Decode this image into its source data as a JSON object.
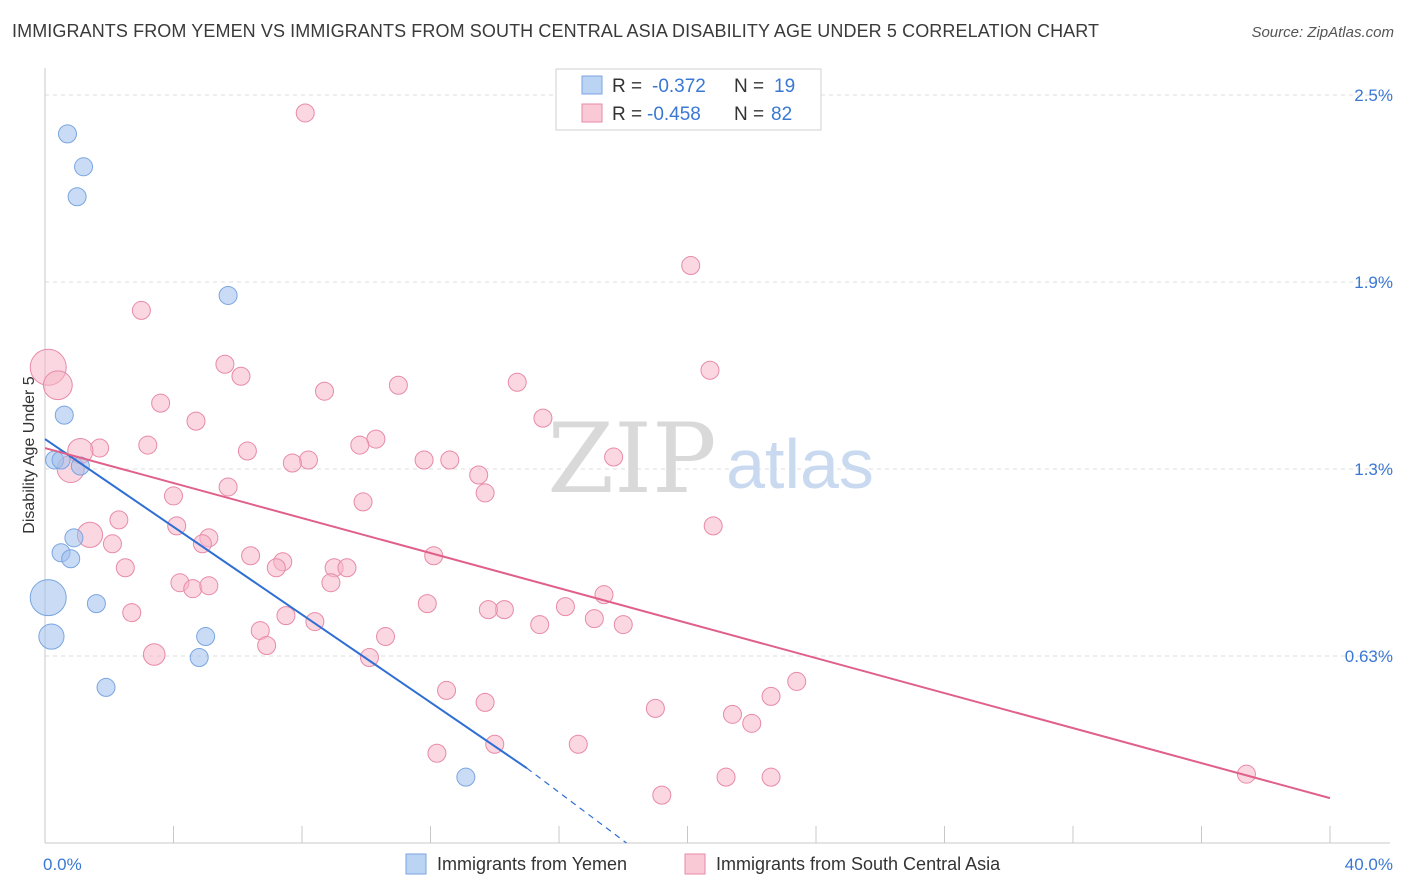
{
  "title": "IMMIGRANTS FROM YEMEN VS IMMIGRANTS FROM SOUTH CENTRAL ASIA DISABILITY AGE UNDER 5 CORRELATION CHART",
  "source": "Source: ZipAtlas.com",
  "chart_data": {
    "type": "scatter",
    "title": "IMMIGRANTS FROM YEMEN VS IMMIGRANTS FROM SOUTH CENTRAL ASIA DISABILITY AGE UNDER 5 CORRELATION CHART",
    "xlabel": "",
    "ylabel": "Disability Age Under 5",
    "xlim": [
      0,
      40
    ],
    "ylim": [
      0,
      2.5
    ],
    "x_tick_labels": [
      "0.0%",
      "40.0%"
    ],
    "y_tick_labels": [
      "2.5%",
      "1.9%",
      "1.3%",
      "0.63%"
    ],
    "y_ticks": [
      2.5,
      1.875,
      1.25,
      0.625
    ],
    "grid": true,
    "watermark": {
      "big": "ZIP",
      "small": "atlas"
    },
    "legend": {
      "position": "top-center",
      "rows": [
        {
          "r_label": "R =",
          "r_value": "-0.372",
          "n_label": "N =",
          "n_value": "19"
        },
        {
          "r_label": "R =",
          "r_value": "-0.458",
          "n_label": "N =",
          "n_value": "82"
        }
      ]
    },
    "series": [
      {
        "name": "Immigrants from Yemen",
        "color": "#9ec0ec",
        "line_color": "#2f6fd4",
        "trend": {
          "x0": 0.0,
          "y0": 1.35,
          "x1": 15.0,
          "y1": 0.25,
          "dash_to_x": 18.1,
          "dash_to_y": 0.0
        },
        "points": [
          {
            "x": 0.7,
            "y": 2.37,
            "s": 1
          },
          {
            "x": 1.2,
            "y": 2.26,
            "s": 1
          },
          {
            "x": 1.0,
            "y": 2.16,
            "s": 1
          },
          {
            "x": 5.7,
            "y": 1.83,
            "s": 1
          },
          {
            "x": 0.6,
            "y": 1.43,
            "s": 1
          },
          {
            "x": 0.3,
            "y": 1.28,
            "s": 1
          },
          {
            "x": 0.5,
            "y": 1.28,
            "s": 1
          },
          {
            "x": 1.1,
            "y": 1.26,
            "s": 1
          },
          {
            "x": 0.9,
            "y": 1.02,
            "s": 1
          },
          {
            "x": 0.5,
            "y": 0.97,
            "s": 1
          },
          {
            "x": 0.8,
            "y": 0.95,
            "s": 1
          },
          {
            "x": 0.1,
            "y": 0.82,
            "s": 2
          },
          {
            "x": 1.6,
            "y": 0.8,
            "s": 1
          },
          {
            "x": 0.2,
            "y": 0.69,
            "s": 1.4
          },
          {
            "x": 5.0,
            "y": 0.69,
            "s": 1
          },
          {
            "x": 4.8,
            "y": 0.62,
            "s": 1
          },
          {
            "x": 1.9,
            "y": 0.52,
            "s": 1
          },
          {
            "x": 13.1,
            "y": 0.22,
            "s": 1
          }
        ]
      },
      {
        "name": "Immigrants from South Central Asia",
        "color": "#f6b6c8",
        "line_color": "#e0608a",
        "trend": {
          "x0": 0.0,
          "y0": 1.32,
          "x1": 40.0,
          "y1": 0.15
        },
        "points": [
          {
            "x": 8.1,
            "y": 2.44,
            "s": 1
          },
          {
            "x": 20.1,
            "y": 1.93,
            "s": 1
          },
          {
            "x": 3.0,
            "y": 1.78,
            "s": 1
          },
          {
            "x": 0.1,
            "y": 1.59,
            "s": 2
          },
          {
            "x": 0.4,
            "y": 1.53,
            "s": 1.6
          },
          {
            "x": 5.6,
            "y": 1.6,
            "s": 1
          },
          {
            "x": 6.1,
            "y": 1.56,
            "s": 1
          },
          {
            "x": 20.7,
            "y": 1.58,
            "s": 1
          },
          {
            "x": 11.0,
            "y": 1.53,
            "s": 1
          },
          {
            "x": 14.7,
            "y": 1.54,
            "s": 1
          },
          {
            "x": 8.7,
            "y": 1.51,
            "s": 1
          },
          {
            "x": 3.6,
            "y": 1.47,
            "s": 1
          },
          {
            "x": 4.7,
            "y": 1.41,
            "s": 1
          },
          {
            "x": 15.5,
            "y": 1.42,
            "s": 1
          },
          {
            "x": 3.2,
            "y": 1.33,
            "s": 1
          },
          {
            "x": 10.3,
            "y": 1.35,
            "s": 1
          },
          {
            "x": 9.8,
            "y": 1.33,
            "s": 1
          },
          {
            "x": 11.8,
            "y": 1.28,
            "s": 1
          },
          {
            "x": 17.7,
            "y": 1.29,
            "s": 1
          },
          {
            "x": 1.7,
            "y": 1.32,
            "s": 1
          },
          {
            "x": 1.1,
            "y": 1.31,
            "s": 1.4
          },
          {
            "x": 6.3,
            "y": 1.31,
            "s": 1
          },
          {
            "x": 12.6,
            "y": 1.28,
            "s": 1
          },
          {
            "x": 8.2,
            "y": 1.28,
            "s": 1
          },
          {
            "x": 7.7,
            "y": 1.27,
            "s": 1
          },
          {
            "x": 0.8,
            "y": 1.25,
            "s": 1.5
          },
          {
            "x": 13.5,
            "y": 1.23,
            "s": 1
          },
          {
            "x": 13.7,
            "y": 1.17,
            "s": 1
          },
          {
            "x": 5.7,
            "y": 1.19,
            "s": 1
          },
          {
            "x": 4.0,
            "y": 1.16,
            "s": 1
          },
          {
            "x": 9.9,
            "y": 1.14,
            "s": 1
          },
          {
            "x": 2.3,
            "y": 1.08,
            "s": 1
          },
          {
            "x": 4.1,
            "y": 1.06,
            "s": 1
          },
          {
            "x": 20.8,
            "y": 1.06,
            "s": 1
          },
          {
            "x": 1.4,
            "y": 1.03,
            "s": 1.4
          },
          {
            "x": 2.1,
            "y": 1.0,
            "s": 1
          },
          {
            "x": 5.1,
            "y": 1.02,
            "s": 1
          },
          {
            "x": 4.9,
            "y": 1.0,
            "s": 1
          },
          {
            "x": 6.4,
            "y": 0.96,
            "s": 1
          },
          {
            "x": 7.4,
            "y": 0.94,
            "s": 1
          },
          {
            "x": 7.2,
            "y": 0.92,
            "s": 1
          },
          {
            "x": 9.0,
            "y": 0.92,
            "s": 1
          },
          {
            "x": 9.4,
            "y": 0.92,
            "s": 1
          },
          {
            "x": 12.1,
            "y": 0.96,
            "s": 1
          },
          {
            "x": 2.5,
            "y": 0.92,
            "s": 1
          },
          {
            "x": 4.2,
            "y": 0.87,
            "s": 1
          },
          {
            "x": 4.6,
            "y": 0.85,
            "s": 1
          },
          {
            "x": 5.1,
            "y": 0.86,
            "s": 1
          },
          {
            "x": 8.9,
            "y": 0.87,
            "s": 1
          },
          {
            "x": 11.9,
            "y": 0.8,
            "s": 1
          },
          {
            "x": 17.4,
            "y": 0.83,
            "s": 1
          },
          {
            "x": 14.3,
            "y": 0.78,
            "s": 1
          },
          {
            "x": 16.2,
            "y": 0.79,
            "s": 1
          },
          {
            "x": 13.8,
            "y": 0.78,
            "s": 1
          },
          {
            "x": 2.7,
            "y": 0.77,
            "s": 1
          },
          {
            "x": 7.5,
            "y": 0.76,
            "s": 1
          },
          {
            "x": 8.4,
            "y": 0.74,
            "s": 1
          },
          {
            "x": 15.4,
            "y": 0.73,
            "s": 1
          },
          {
            "x": 17.1,
            "y": 0.75,
            "s": 1
          },
          {
            "x": 18.0,
            "y": 0.73,
            "s": 1
          },
          {
            "x": 6.7,
            "y": 0.71,
            "s": 1
          },
          {
            "x": 10.6,
            "y": 0.69,
            "s": 1
          },
          {
            "x": 6.9,
            "y": 0.66,
            "s": 1
          },
          {
            "x": 3.4,
            "y": 0.63,
            "s": 1.2
          },
          {
            "x": 10.1,
            "y": 0.62,
            "s": 1
          },
          {
            "x": 12.5,
            "y": 0.51,
            "s": 1
          },
          {
            "x": 23.4,
            "y": 0.54,
            "s": 1
          },
          {
            "x": 22.6,
            "y": 0.49,
            "s": 1
          },
          {
            "x": 13.7,
            "y": 0.47,
            "s": 1
          },
          {
            "x": 19.0,
            "y": 0.45,
            "s": 1
          },
          {
            "x": 21.4,
            "y": 0.43,
            "s": 1
          },
          {
            "x": 22.0,
            "y": 0.4,
            "s": 1
          },
          {
            "x": 14.0,
            "y": 0.33,
            "s": 1
          },
          {
            "x": 16.6,
            "y": 0.33,
            "s": 1
          },
          {
            "x": 12.2,
            "y": 0.3,
            "s": 1
          },
          {
            "x": 21.2,
            "y": 0.22,
            "s": 1
          },
          {
            "x": 22.6,
            "y": 0.22,
            "s": 1
          },
          {
            "x": 19.2,
            "y": 0.16,
            "s": 1
          },
          {
            "x": 37.4,
            "y": 0.23,
            "s": 1
          }
        ]
      }
    ]
  }
}
